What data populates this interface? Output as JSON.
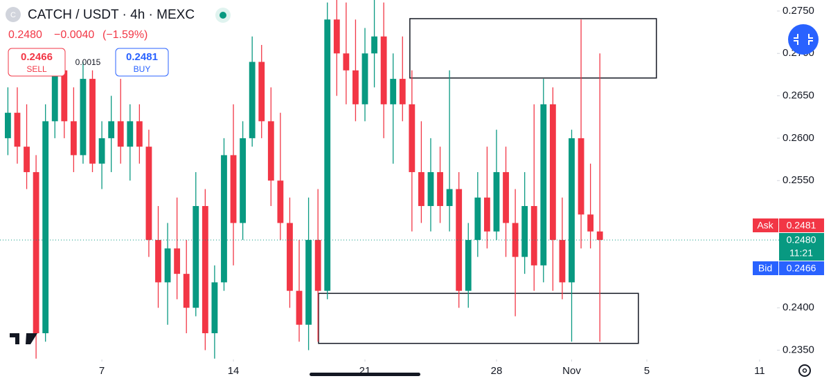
{
  "header": {
    "symbol": "CATCH / USDT · 4h · MEXC",
    "icon": "C",
    "last": "0.2480",
    "change": "−0.0040",
    "change_pct": "(−1.59%)"
  },
  "ticket": {
    "sell_price": "0.2466",
    "sell": "SELL",
    "spread": "0.0015",
    "buy_price": "0.2481",
    "buy": "BUY"
  },
  "price_tags": {
    "ask": "Ask",
    "ask_price": "0.2481",
    "last_price": "0.2480",
    "countdown": "11:21",
    "bid": "Bid",
    "bid_price": "0.2466"
  },
  "chart_data": {
    "type": "candlestick",
    "up_color": "#089981",
    "down_color": "#f23645",
    "x": [
      2,
      2.5,
      3,
      3.5,
      4,
      4.5,
      5,
      5.5,
      6,
      6.5,
      7,
      7.5,
      8,
      8.5,
      9,
      9.5,
      10,
      10.5,
      11,
      11.5,
      12,
      12.5,
      13,
      13.5,
      14,
      14.5,
      15,
      15.5,
      16,
      16.5,
      17,
      17.5,
      18,
      18.5,
      19,
      19.5,
      20,
      20.5,
      21,
      21.5,
      22,
      22.5,
      23,
      23.5,
      24,
      24.5,
      25,
      25.5,
      26,
      26.5,
      27,
      27.5,
      28,
      28.5,
      29,
      29.5,
      30,
      30.5,
      31,
      31.5,
      32,
      32.5,
      33,
      33.5
    ],
    "open": [
      0.26,
      0.263,
      0.259,
      0.256,
      0.237,
      0.262,
      0.268,
      0.262,
      0.258,
      0.267,
      0.257,
      0.26,
      0.262,
      0.259,
      0.262,
      0.259,
      0.248,
      0.243,
      0.247,
      0.244,
      0.24,
      0.252,
      0.237,
      0.243,
      0.258,
      0.25,
      0.26,
      0.269,
      0.262,
      0.255,
      0.25,
      0.242,
      0.238,
      0.248,
      0.242,
      0.274,
      0.27,
      0.268,
      0.264,
      0.27,
      0.272,
      0.264,
      0.267,
      0.264,
      0.256,
      0.252,
      0.256,
      0.252,
      0.254,
      0.242,
      0.248,
      0.253,
      0.249,
      0.256,
      0.25,
      0.246,
      0.252,
      0.245,
      0.264,
      0.248,
      0.243,
      0.26,
      0.251,
      0.249
    ],
    "high": [
      0.266,
      0.266,
      0.264,
      0.258,
      0.264,
      0.27,
      0.27,
      0.266,
      0.269,
      0.268,
      0.262,
      0.265,
      0.267,
      0.264,
      0.264,
      0.261,
      0.252,
      0.25,
      0.253,
      0.248,
      0.256,
      0.254,
      0.245,
      0.26,
      0.264,
      0.262,
      0.272,
      0.271,
      0.266,
      0.263,
      0.253,
      0.248,
      0.253,
      0.254,
      0.276,
      0.2765,
      0.276,
      0.274,
      0.273,
      0.2765,
      0.276,
      0.27,
      0.272,
      0.268,
      0.262,
      0.26,
      0.259,
      0.268,
      0.256,
      0.25,
      0.256,
      0.259,
      0.261,
      0.259,
      0.254,
      0.256,
      0.264,
      0.267,
      0.266,
      0.253,
      0.261,
      0.274,
      0.257,
      0.27
    ],
    "low": [
      0.258,
      0.257,
      0.254,
      0.234,
      0.236,
      0.26,
      0.26,
      0.256,
      0.257,
      0.256,
      0.254,
      0.256,
      0.257,
      0.255,
      0.257,
      0.246,
      0.24,
      0.238,
      0.241,
      0.237,
      0.239,
      0.235,
      0.234,
      0.242,
      0.245,
      0.248,
      0.259,
      0.26,
      0.252,
      0.248,
      0.24,
      0.236,
      0.235,
      0.236,
      0.241,
      0.265,
      0.264,
      0.262,
      0.262,
      0.266,
      0.26,
      0.257,
      0.262,
      0.249,
      0.25,
      0.249,
      0.25,
      0.249,
      0.24,
      0.24,
      0.246,
      0.247,
      0.248,
      0.246,
      0.239,
      0.244,
      0.242,
      0.243,
      0.242,
      0.241,
      0.236,
      0.247,
      0.247,
      0.236
    ],
    "close": [
      0.263,
      0.259,
      0.256,
      0.237,
      0.262,
      0.268,
      0.262,
      0.258,
      0.267,
      0.257,
      0.26,
      0.262,
      0.259,
      0.262,
      0.259,
      0.248,
      0.243,
      0.247,
      0.244,
      0.24,
      0.252,
      0.237,
      0.243,
      0.258,
      0.25,
      0.26,
      0.269,
      0.262,
      0.255,
      0.25,
      0.242,
      0.238,
      0.248,
      0.242,
      0.274,
      0.27,
      0.268,
      0.264,
      0.27,
      0.272,
      0.264,
      0.267,
      0.264,
      0.256,
      0.252,
      0.256,
      0.252,
      0.254,
      0.242,
      0.248,
      0.253,
      0.249,
      0.256,
      0.25,
      0.246,
      0.252,
      0.245,
      0.264,
      0.248,
      0.243,
      0.26,
      0.251,
      0.249,
      0.248
    ],
    "xlim": [
      1.58,
      45.8
    ],
    "ylim": [
      0.2763,
      0.2339
    ],
    "xticks": [
      7,
      14,
      21,
      28,
      {
        "value": 32,
        "label": "Nov"
      },
      {
        "value": 36,
        "label": "5"
      },
      {
        "value": 42,
        "label": "11"
      }
    ],
    "yticks": [
      {
        "value": 0.275,
        "label": "0.2750"
      },
      {
        "value": 0.27,
        "label": "0.2700"
      },
      {
        "value": 0.265,
        "label": "0.2650"
      },
      {
        "value": 0.26,
        "label": "0.2600"
      },
      {
        "value": 0.255,
        "label": "0.2550"
      },
      {
        "value": 0.24,
        "label": "0.2400"
      },
      {
        "value": 0.235,
        "label": "0.2350"
      }
    ],
    "last_price": 0.248,
    "zones": [
      {
        "x": [
          23.39,
          36.51
        ],
        "y": [
          0.2741,
          0.2671
        ]
      },
      {
        "x": [
          18.53,
          35.55
        ],
        "y": [
          0.2417,
          0.2358
        ]
      }
    ]
  }
}
